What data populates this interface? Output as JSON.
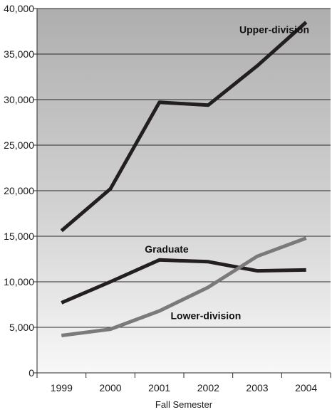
{
  "chart_data": {
    "type": "line",
    "title": "",
    "xlabel": "Fall Semester",
    "ylabel": "",
    "categories": [
      "1999",
      "2000",
      "2001",
      "2002",
      "2003",
      "2004"
    ],
    "ylim": [
      0,
      40000
    ],
    "yticks": [
      "0",
      "5,000",
      "10,000",
      "15,000",
      "20,000",
      "25,000",
      "30,000",
      "35,000",
      "40,000"
    ],
    "grid": true,
    "legend": "none (series labeled directly on lines)",
    "series": [
      {
        "name": "Upper-division",
        "color": "#231f20",
        "values": [
          15600,
          20200,
          29700,
          29400,
          33700,
          38500
        ]
      },
      {
        "name": "Graduate",
        "color": "#231f20",
        "values": [
          7700,
          10000,
          12400,
          12200,
          11200,
          11300
        ]
      },
      {
        "name": "Lower-division",
        "color": "#7a7a7a",
        "values": [
          4100,
          4800,
          6800,
          9400,
          12800,
          14800
        ]
      }
    ]
  }
}
